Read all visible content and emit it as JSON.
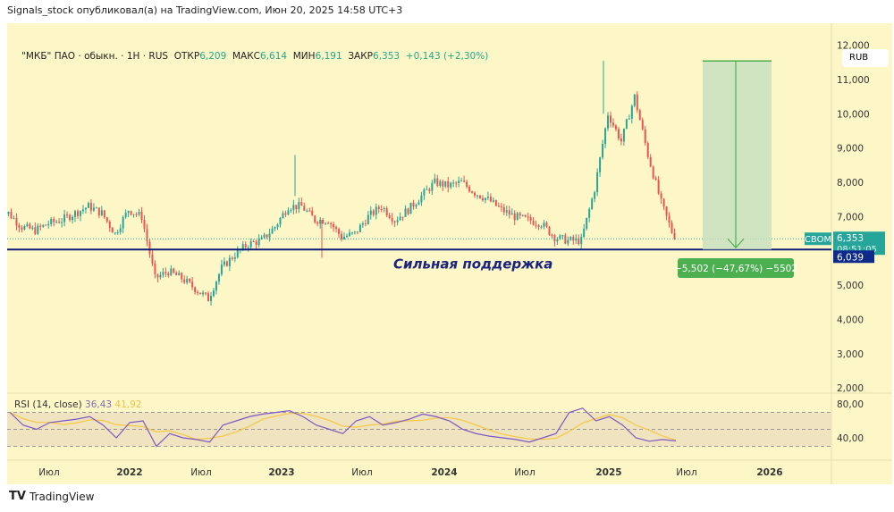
{
  "header": "Signals_stock опубликовал(а) на TradingView.com, Июн 20, 2025 14:58 UTC+3",
  "legend": {
    "symbol": "\"МКБ\" ПАО · обыкн. · 1H · RUS",
    "open_label": "ОТКР",
    "open": "6,209",
    "high_label": "МАКС",
    "high": "6,614",
    "low_label": "МИН",
    "low": "6,191",
    "close_label": "ЗАКР",
    "close": "6,353",
    "change": "+0,143 (+2,30%)"
  },
  "currency": "RUB",
  "price_axis": [
    "11,000",
    "10,000",
    "9,000",
    "8,000",
    "7,000",
    "5,000",
    "4,000",
    "3,000",
    "2,000"
  ],
  "last_price": {
    "ticker": "CBOM",
    "value": "6,353",
    "countdown": "08:51:05"
  },
  "support_price": "6,039",
  "support_label": "Сильная поддержка",
  "measure_label": "−5,502 (−47,67%) −5502",
  "rsi": {
    "title": "RSI (14, close)",
    "value": "36,43",
    "ma": "41,92",
    "axis": [
      "80,00",
      "40,00"
    ]
  },
  "time_axis": [
    "Июл",
    "2022",
    "Июл",
    "2023",
    "Июл",
    "2024",
    "Июл",
    "2025",
    "Июл",
    "2026"
  ],
  "footer": "TradingView",
  "colors": {
    "up": "#26a69a",
    "down": "#ef5350",
    "support": "#0d1f7a",
    "rsi": "#7e57c2",
    "rsi_ma": "#f5c842",
    "measure": "#4caf50"
  },
  "chart_data": {
    "type": "candlestick",
    "start_month": "2021-04",
    "closes": [
      7100,
      6700,
      6600,
      6800,
      6900,
      7100,
      7300,
      7100,
      6500,
      7200,
      7000,
      5200,
      5400,
      5200,
      4900,
      4600,
      5500,
      5900,
      6200,
      6300,
      6700,
      7300,
      7300,
      6900,
      6900,
      6400,
      6500,
      7000,
      7300,
      6900,
      7200,
      7600,
      8000,
      7900,
      8000,
      7700,
      7500,
      7200,
      7000,
      6900,
      6800,
      6400,
      6300,
      6300,
      7800,
      10000,
      9200,
      10500,
      8800,
      7400,
      6353
    ],
    "rsi": [
      70,
      55,
      50,
      58,
      60,
      62,
      65,
      55,
      40,
      58,
      60,
      30,
      45,
      40,
      38,
      35,
      55,
      60,
      65,
      68,
      70,
      72,
      65,
      55,
      50,
      45,
      60,
      65,
      55,
      58,
      62,
      68,
      65,
      60,
      50,
      45,
      42,
      40,
      38,
      35,
      40,
      45,
      70,
      75,
      60,
      65,
      55,
      40,
      36,
      38,
      36.43
    ],
    "support_level": 6039,
    "target_level": 11541,
    "ylim": [
      2000,
      12000
    ]
  }
}
